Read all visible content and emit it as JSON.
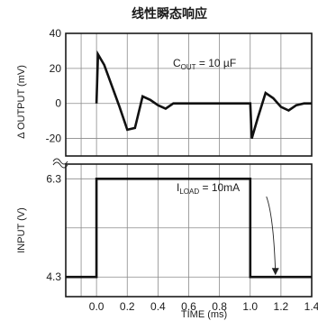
{
  "title": "线性瞬态响应",
  "chart_data": [
    {
      "type": "line",
      "panel": "top",
      "ylabel": "Δ OUTPUT (mV)",
      "ylim": [
        -30,
        40
      ],
      "yticks": [
        40,
        20,
        0,
        -20
      ],
      "annotation": {
        "text": "C",
        "subscript": "OUT",
        "rest": " = 10 µF"
      },
      "series": [
        {
          "x": [
            0,
            0.01,
            0.05,
            0.1,
            0.15,
            0.2,
            0.25,
            0.3,
            0.35,
            0.4,
            0.45,
            0.5,
            1.0,
            1.01,
            1.05,
            1.1,
            1.15,
            1.2,
            1.25,
            1.3,
            1.35,
            1.4
          ],
          "y": [
            0,
            28,
            22,
            10,
            -2,
            -15,
            -14,
            4,
            2,
            -1,
            -3,
            0,
            0,
            -20,
            -8,
            6,
            3,
            -2,
            -4,
            -1,
            0,
            0
          ]
        }
      ]
    },
    {
      "type": "line",
      "panel": "bottom",
      "xlabel": "TIME (ms)",
      "ylabel": "INPUT (V)",
      "xlim": [
        -0.2,
        1.4
      ],
      "xticks": [
        "0.0",
        "0.2",
        "0.4",
        "0.6",
        "0.8",
        "1.0",
        "1.2",
        "1.4"
      ],
      "xtick_values": [
        0,
        0.2,
        0.4,
        0.6,
        0.8,
        1.0,
        1.2,
        1.4
      ],
      "ylim": [
        3.9,
        6.6
      ],
      "yticks": [
        "6.3",
        "4.3"
      ],
      "ytick_values": [
        6.3,
        4.3
      ],
      "annotation": {
        "text": "I",
        "subscript": "LOAD",
        "rest": " = 10mA"
      },
      "series": [
        {
          "x": [
            -0.2,
            0,
            0,
            1.0,
            1.0,
            1.4
          ],
          "y": [
            4.3,
            4.3,
            6.3,
            6.3,
            4.3,
            4.3
          ]
        }
      ]
    }
  ]
}
